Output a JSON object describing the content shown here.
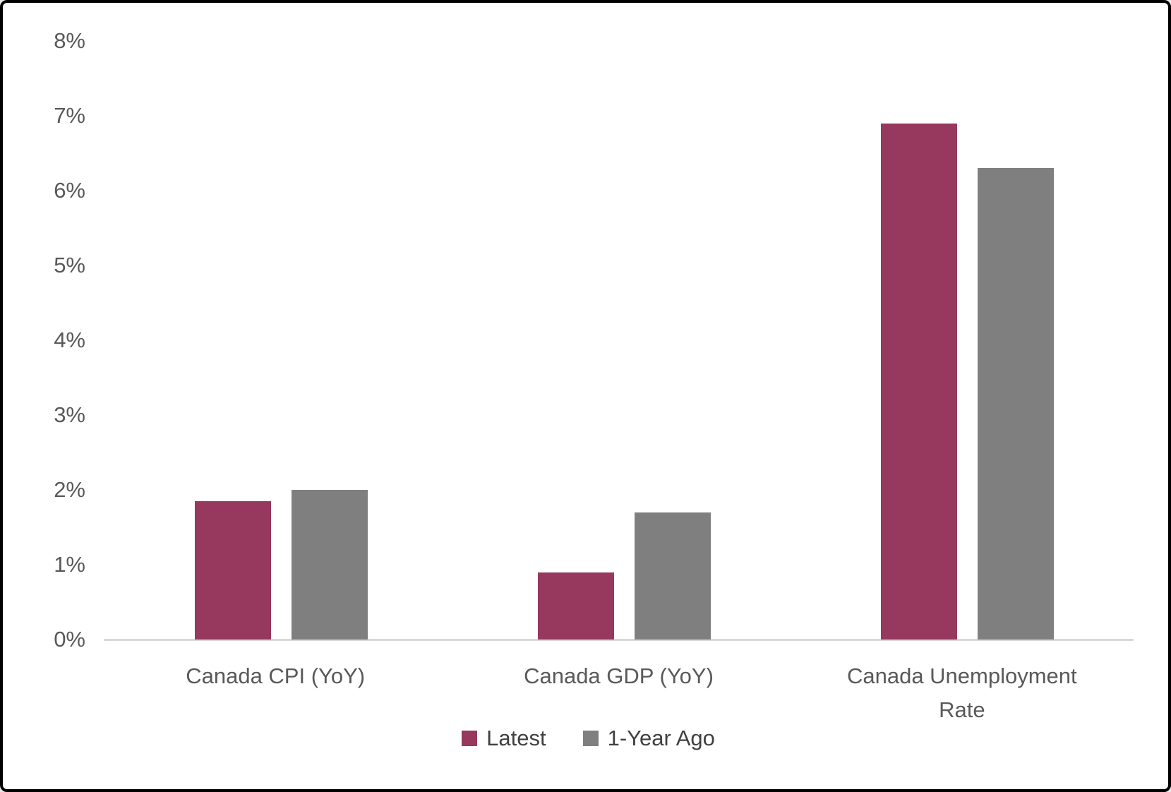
{
  "chart_data": {
    "type": "bar",
    "title": "",
    "xlabel": "",
    "ylabel": "",
    "categories": [
      "Canada CPI (YoY)",
      "Canada GDP (YoY)",
      "Canada Unemployment\nRate"
    ],
    "series": [
      {
        "name": "Latest",
        "color": "#97385E",
        "values": [
          1.85,
          0.9,
          6.9
        ]
      },
      {
        "name": "1-Year Ago",
        "color": "#7F7F7F",
        "values": [
          2.0,
          1.7,
          6.3
        ]
      }
    ],
    "yticks": [
      "0%",
      "1%",
      "2%",
      "3%",
      "4%",
      "5%",
      "6%",
      "7%",
      "8%"
    ],
    "ylim": [
      0,
      8
    ],
    "grid": false,
    "legend_position": "bottom"
  },
  "colors": {
    "background": "#FFFFFF",
    "frame_border": "#000000",
    "axis_line": "#D9D9D9",
    "tick_text": "#595959",
    "category_text": "#595959",
    "legend_text": "#404040"
  }
}
